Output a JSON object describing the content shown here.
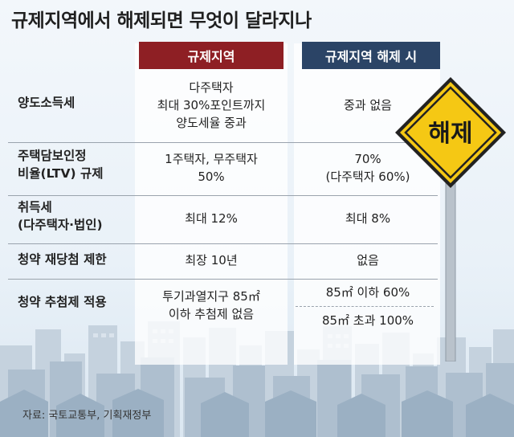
{
  "title": "규제지역에서 해제되면 무엇이 달라지나",
  "headers": {
    "regulated": "규제지역",
    "released": "규제지역 해제 시"
  },
  "rows": [
    {
      "label": [
        "양도소득세"
      ],
      "regulated": [
        "다주택자",
        "최대 30%포인트까지",
        "양도세율 중과"
      ],
      "released": [
        "중과 없음"
      ]
    },
    {
      "label": [
        "주택담보인정",
        "비율(LTV) 규제"
      ],
      "regulated": [
        "1주택자, 무주택자",
        "50%"
      ],
      "released": [
        "70%",
        "(다주택자 60%)"
      ]
    },
    {
      "label": [
        "취득세",
        "(다주택자·법인)"
      ],
      "regulated": [
        "최대 12%"
      ],
      "released": [
        "최대 8%"
      ]
    },
    {
      "label": [
        "청약 재당첨 제한"
      ],
      "regulated": [
        "최장 10년"
      ],
      "released": [
        "없음"
      ]
    },
    {
      "label": [
        "청약 추첨제 적용"
      ],
      "regulated": [
        "투기과열지구 85㎡",
        "이하 추첨제 없음"
      ],
      "released": [
        "85㎡ 이하 60%",
        "85㎡ 초과 100%"
      ]
    }
  ],
  "sign_text": "해제",
  "source": "자료: 국토교통부, 기획재정부",
  "colors": {
    "regulated_header": "#8e1f24",
    "released_header": "#2b4466",
    "sign_fill": "#f5c814",
    "sign_border": "#222222"
  }
}
